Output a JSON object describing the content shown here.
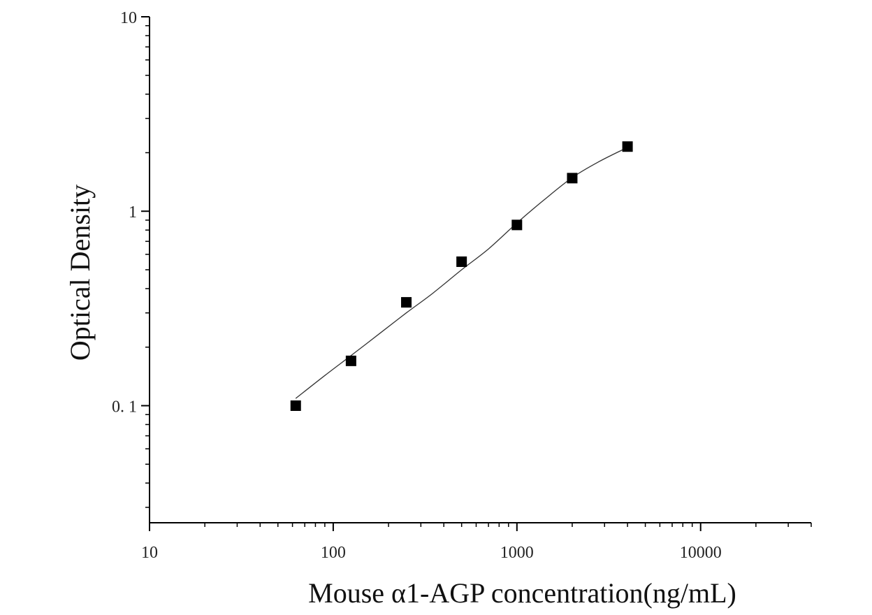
{
  "chart_data": {
    "type": "scatter",
    "xlabel": "Mouse α1-AGP concentration(ng/mL)",
    "ylabel": "Optical Density",
    "x_scale": "log",
    "y_scale": "log",
    "xlim": [
      10,
      40000
    ],
    "ylim": [
      0.025,
      10
    ],
    "x_ticks": [
      {
        "value": 10,
        "label": "10"
      },
      {
        "value": 100,
        "label": "100"
      },
      {
        "value": 1000,
        "label": "1000"
      },
      {
        "value": 10000,
        "label": "10000"
      }
    ],
    "y_ticks": [
      {
        "value": 0.1,
        "label": "0. 1"
      },
      {
        "value": 1,
        "label": "1"
      },
      {
        "value": 10,
        "label": "10"
      }
    ],
    "grid": false,
    "legend": "none",
    "marker": "square",
    "marker_color": "#000000",
    "line_color": "#333333",
    "points": [
      {
        "x": 62.5,
        "y": 0.1
      },
      {
        "x": 125,
        "y": 0.17
      },
      {
        "x": 250,
        "y": 0.34
      },
      {
        "x": 500,
        "y": 0.55
      },
      {
        "x": 1000,
        "y": 0.85
      },
      {
        "x": 2000,
        "y": 1.48
      },
      {
        "x": 4000,
        "y": 2.15
      }
    ],
    "fit_curve": [
      {
        "x": 62.5,
        "y": 0.109
      },
      {
        "x": 90,
        "y": 0.143
      },
      {
        "x": 125,
        "y": 0.181
      },
      {
        "x": 180,
        "y": 0.236
      },
      {
        "x": 250,
        "y": 0.3
      },
      {
        "x": 350,
        "y": 0.38
      },
      {
        "x": 500,
        "y": 0.5
      },
      {
        "x": 700,
        "y": 0.64
      },
      {
        "x": 1000,
        "y": 0.87
      },
      {
        "x": 1400,
        "y": 1.14
      },
      {
        "x": 2000,
        "y": 1.49
      },
      {
        "x": 2800,
        "y": 1.8
      },
      {
        "x": 4000,
        "y": 2.13
      }
    ]
  }
}
